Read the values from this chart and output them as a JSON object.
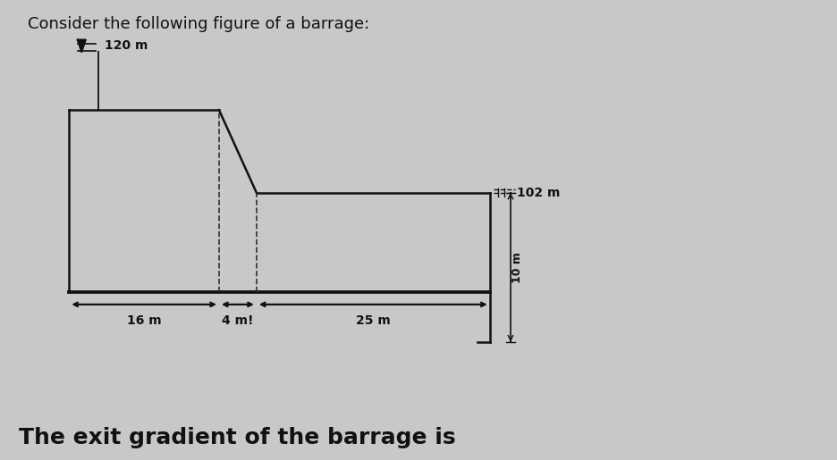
{
  "bg_color": "#c8c8c8",
  "title": "Consider the following figure of a barrage:",
  "footer": "The exit gradient of the barrage is",
  "title_fontsize": 13,
  "footer_fontsize": 18,
  "label_120m": "120 m",
  "label_102m": "102 m",
  "label_16m": "16 m",
  "label_4m": "4 m!",
  "label_25m": "25 m",
  "label_10m": "10 m",
  "line_color": "#111111",
  "dashed_color": "#333333",
  "lw_main": 1.8,
  "lw_dim": 1.6,
  "lw_dash": 1.2
}
